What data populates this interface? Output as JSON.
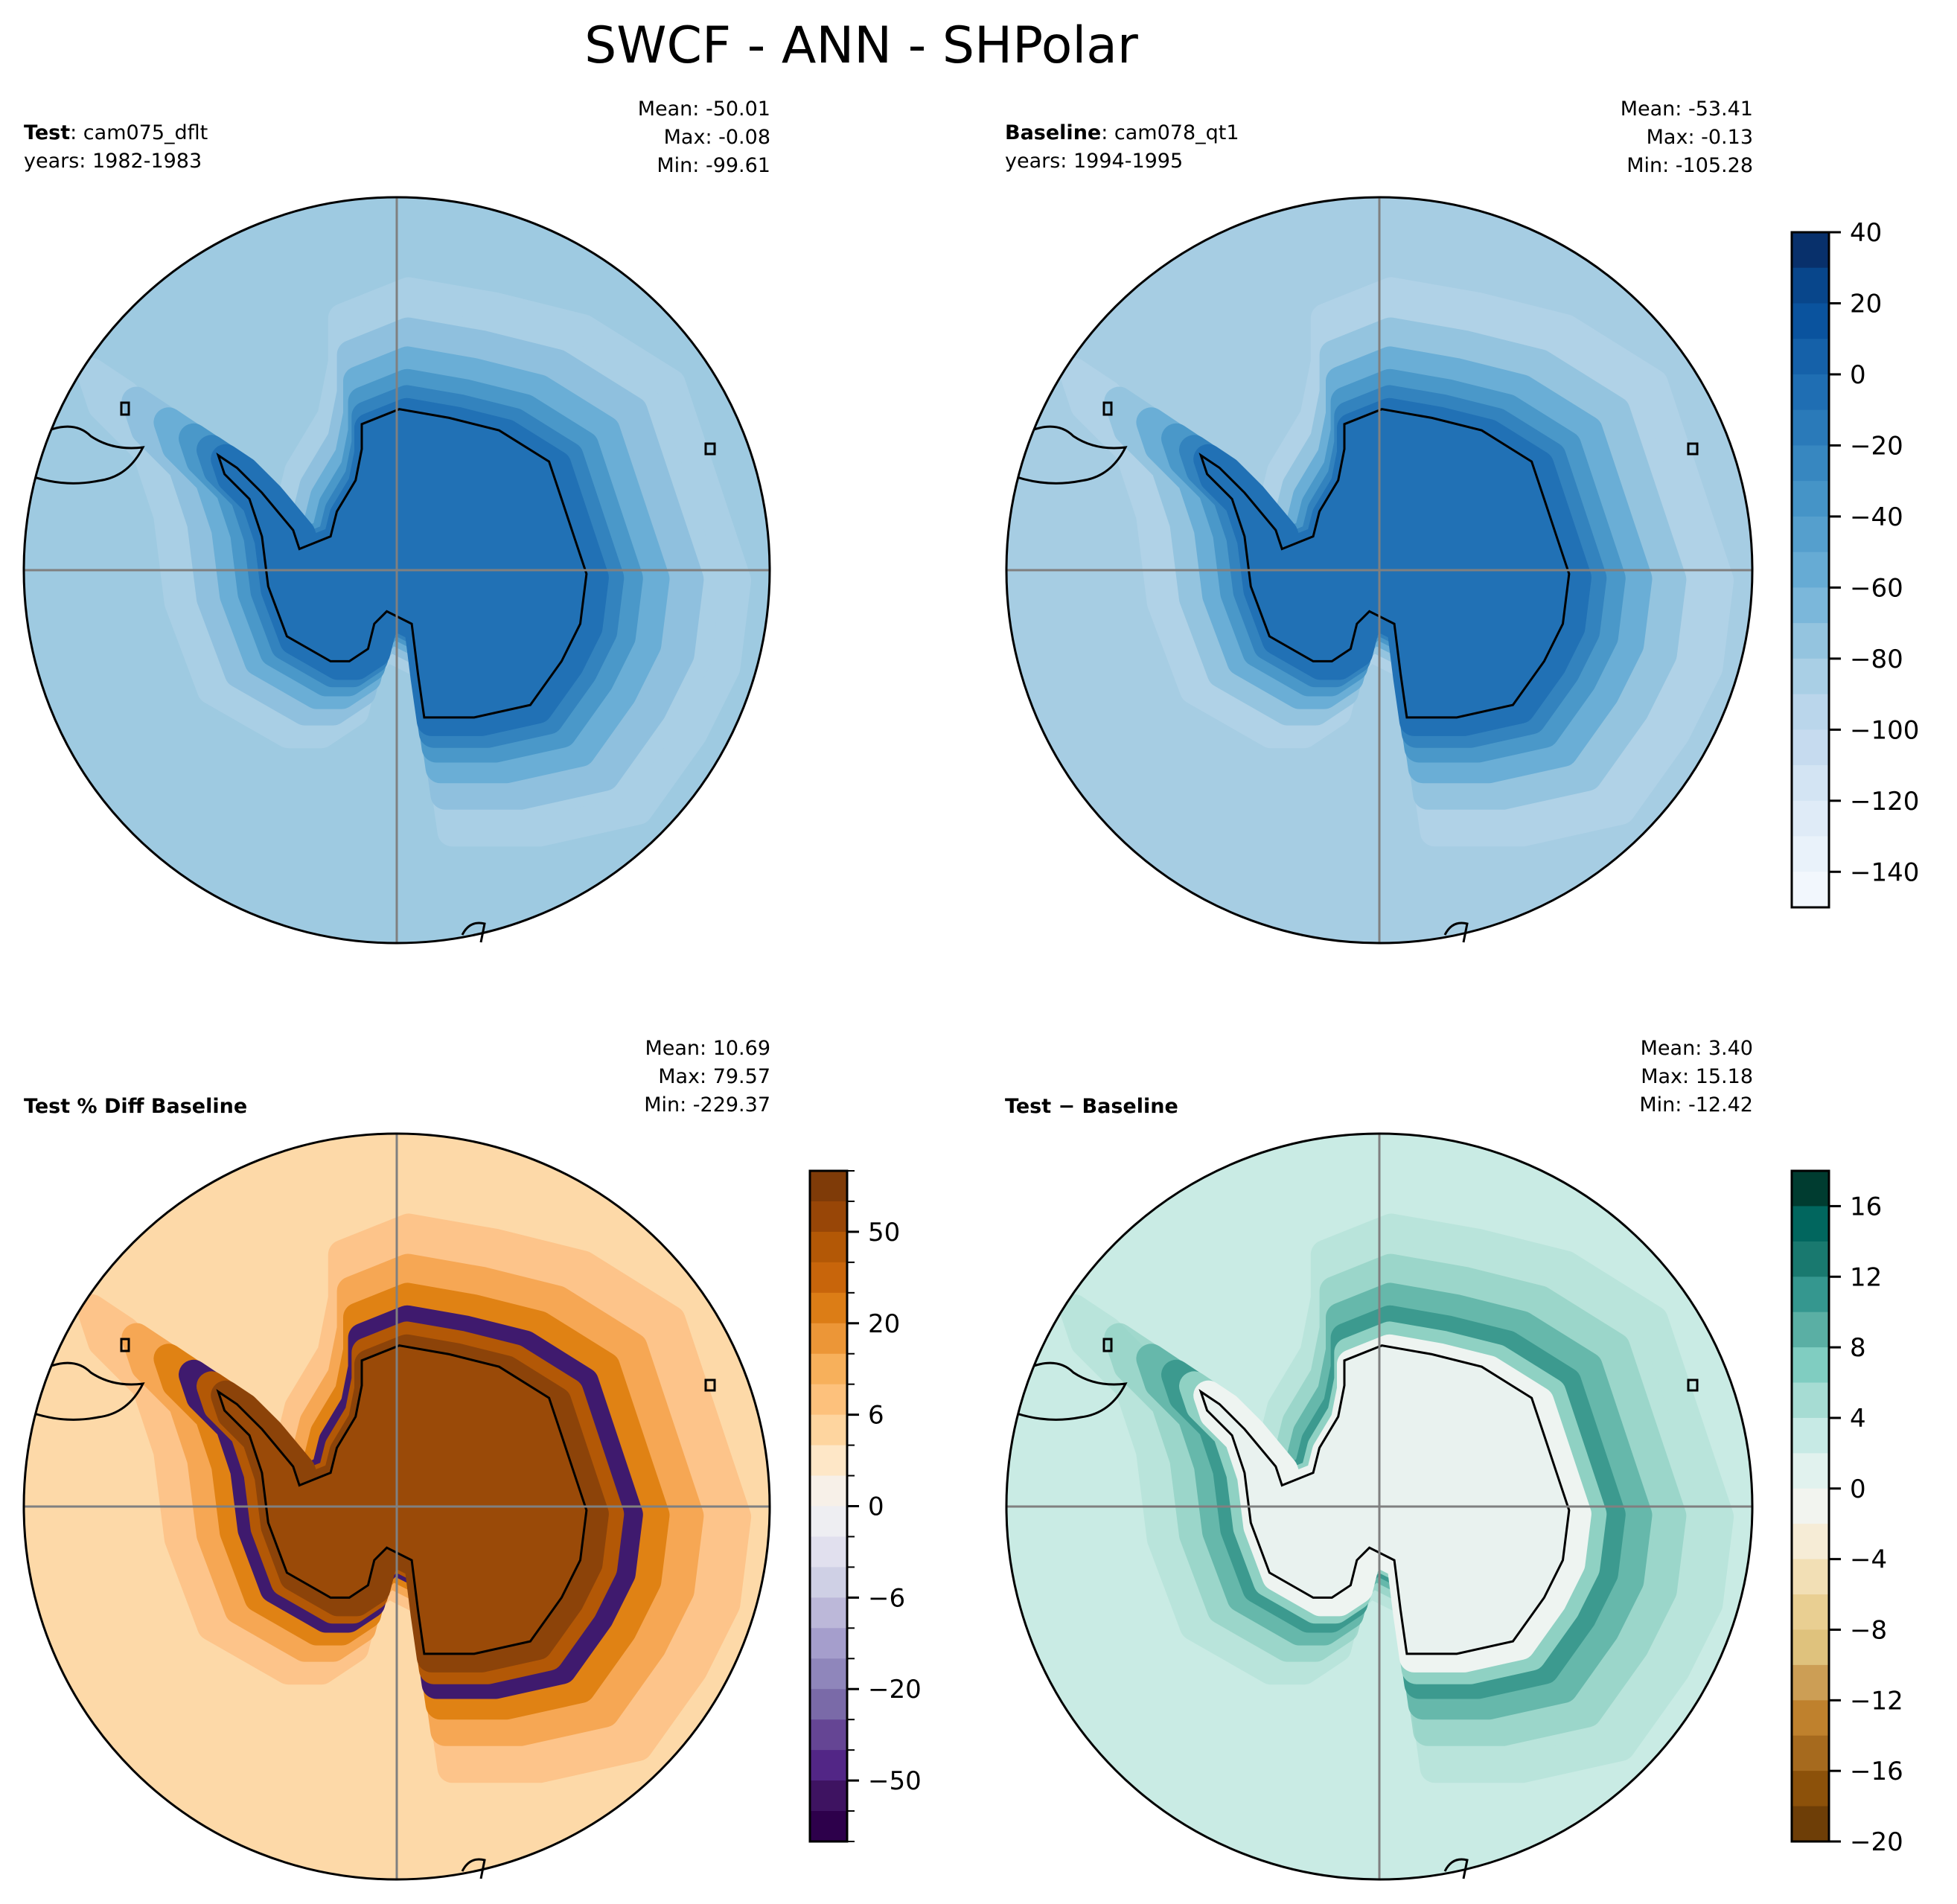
{
  "figure_title": "SWCF - ANN - SHPolar",
  "chart_data": [
    {
      "type": "heatmap",
      "panel": "test",
      "label_bold": "Test",
      "label_rest": ": cam075_dflt",
      "years": "years: 1982-1983",
      "stats": {
        "mean": "Mean: -50.01",
        "max": "Max: -0.08",
        "min": "Min: -99.61"
      },
      "projection": "south polar stereographic",
      "colormap": "Blues_r",
      "base_color": "#9ecae1",
      "ring_colors": [
        "#a9cfe5",
        "#8fc0de",
        "#6aaed6",
        "#4a98c9",
        "#3383be",
        "#2171b5"
      ],
      "land_color": "#2171b5"
    },
    {
      "type": "heatmap",
      "panel": "baseline",
      "label_bold": "Baseline",
      "label_rest": ": cam078_qt1",
      "years": "years: 1994-1995",
      "stats": {
        "mean": "Mean: -53.41",
        "max": "Max: -0.13",
        "min": "Min: -105.28"
      },
      "projection": "south polar stereographic",
      "colormap": "Blues_r",
      "base_color": "#a6cde3",
      "ring_colors": [
        "#b0d2e7",
        "#94c4df",
        "#6aaed6",
        "#4a98c9",
        "#3383be",
        "#2171b5"
      ],
      "land_color": "#2171b5",
      "colorbar": {
        "levels": [
          40,
          30,
          20,
          10,
          0,
          -10,
          -20,
          -30,
          -40,
          -50,
          -60,
          -70,
          -80,
          -90,
          -100,
          -110,
          -120,
          -130,
          -140,
          -150
        ],
        "tick_labels": [
          "40",
          "20",
          "0",
          "−20",
          "−40",
          "−60",
          "−80",
          "−100",
          "−120",
          "−140"
        ],
        "tick_values": [
          40,
          20,
          0,
          -20,
          -40,
          -60,
          -80,
          -100,
          -120,
          -140
        ],
        "colors": [
          "#08306b",
          "#08468b",
          "#0a539e",
          "#1561a9",
          "#1f6eb3",
          "#2a7ab9",
          "#3787c0",
          "#4594c7",
          "#559fcd",
          "#66abd4",
          "#7bb7da",
          "#94c4df",
          "#a9cfe5",
          "#bad6eb",
          "#c6dbef",
          "#d3e4f3",
          "#dfebf7",
          "#e9f2fa",
          "#f2f7fd"
        ]
      }
    },
    {
      "type": "heatmap",
      "panel": "pct_diff",
      "label_bold": "Test % Diff Baseline",
      "stats": {
        "mean": "Mean: 10.69",
        "max": "Max: 79.57",
        "min": "Min: -229.37"
      },
      "projection": "south polar stereographic",
      "colormap": "PuOr_r",
      "base_color": "#fdd9a8",
      "ring_colors": [
        "#fdc48a",
        "#f6a754",
        "#e08214",
        "#3f1a6e",
        "#b35806",
        "#8c4309"
      ],
      "land_color": "#9a4a08",
      "colorbar": {
        "levels": [
          100,
          75,
          50,
          40,
          30,
          20,
          15,
          10,
          6,
          4,
          2,
          0,
          -2,
          -4,
          -6,
          -10,
          -15,
          -20,
          -30,
          -40,
          -50,
          -75,
          -100
        ],
        "tick_labels": [
          "50",
          "20",
          "6",
          "0",
          "−6",
          "−20",
          "−50"
        ],
        "tick_values": [
          50,
          20,
          6,
          0,
          -6,
          -20,
          -50
        ],
        "colors": [
          "#7f3b08",
          "#984607",
          "#b35806",
          "#c8650b",
          "#dc7d16",
          "#ec9637",
          "#f7b05b",
          "#fdc17c",
          "#fed59f",
          "#fee7c7",
          "#f7f0e8",
          "#eeeef2",
          "#e1e0ee",
          "#cfd0e5",
          "#bcb8d9",
          "#a59ecc",
          "#8f86bb",
          "#7a6aa8",
          "#654594",
          "#522686",
          "#3e1361",
          "#2d004b"
        ]
      }
    },
    {
      "type": "heatmap",
      "panel": "diff",
      "label_bold": "Test − Baseline",
      "stats": {
        "mean": "Mean:  3.40",
        "max": "Max: 15.18",
        "min": "Min: -12.42"
      },
      "projection": "south polar stereographic",
      "colormap": "BrBG",
      "base_color": "#c9ebe4",
      "ring_colors": [
        "#b3e2d8",
        "#8fd1c3",
        "#66b8ab",
        "#3c9a8f",
        "#8fd1c3",
        "#eef4f1"
      ],
      "land_color": "#e9f2ef",
      "colorbar": {
        "levels": [
          18,
          16,
          14,
          12,
          10,
          8,
          6,
          4,
          2,
          0,
          -2,
          -4,
          -6,
          -8,
          -10,
          -12,
          -14,
          -16,
          -18,
          -20
        ],
        "tick_labels": [
          "16",
          "12",
          "8",
          "4",
          "0",
          "−4",
          "−8",
          "−12",
          "−16",
          "−20"
        ],
        "tick_values": [
          16,
          12,
          8,
          4,
          0,
          -4,
          -8,
          -12,
          -16,
          -20
        ],
        "colors": [
          "#003c30",
          "#01665e",
          "#19796f",
          "#35978f",
          "#5aafa4",
          "#80cdc1",
          "#a6dcd3",
          "#c7eae5",
          "#e1f2ee",
          "#f2f4ef",
          "#f6ecd6",
          "#f2dfb5",
          "#e9cf92",
          "#dfc27d",
          "#cc9e55",
          "#bf812d",
          "#a66a1e",
          "#8c510a",
          "#6e3e07"
        ]
      }
    }
  ]
}
